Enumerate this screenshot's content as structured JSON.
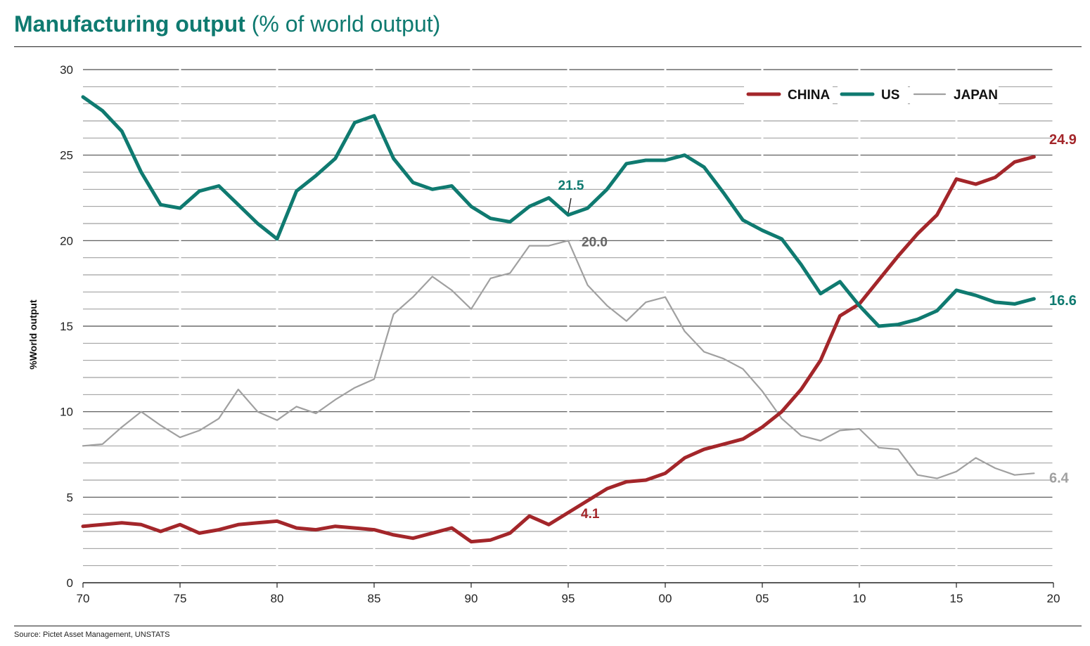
{
  "header": {
    "title_bold": "Manufacturing output",
    "title_rest": " (% of world output)"
  },
  "footer": {
    "source": "Source: Pictet Asset Management, UNSTATS"
  },
  "chart_data": {
    "type": "line",
    "title": "Manufacturing output (% of world output)",
    "xlabel": "",
    "ylabel": "%World output",
    "xlim": [
      1970,
      2020
    ],
    "ylim": [
      0,
      30
    ],
    "yticks": [
      0,
      5,
      10,
      15,
      20,
      25,
      30
    ],
    "xticks": [
      {
        "value": 1970,
        "label": "70"
      },
      {
        "value": 1975,
        "label": "75"
      },
      {
        "value": 1980,
        "label": "80"
      },
      {
        "value": 1985,
        "label": "85"
      },
      {
        "value": 1990,
        "label": "90"
      },
      {
        "value": 1995,
        "label": "95"
      },
      {
        "value": 2000,
        "label": "00"
      },
      {
        "value": 2005,
        "label": "05"
      },
      {
        "value": 2010,
        "label": "10"
      },
      {
        "value": 2015,
        "label": "15"
      },
      {
        "value": 2020,
        "label": "20"
      }
    ],
    "grid": true,
    "legend_position": "top-right",
    "x": [
      1970,
      1971,
      1972,
      1973,
      1974,
      1975,
      1976,
      1977,
      1978,
      1979,
      1980,
      1981,
      1982,
      1983,
      1984,
      1985,
      1986,
      1987,
      1988,
      1989,
      1990,
      1991,
      1992,
      1993,
      1994,
      1995,
      1996,
      1997,
      1998,
      1999,
      2000,
      2001,
      2002,
      2003,
      2004,
      2005,
      2006,
      2007,
      2008,
      2009,
      2010,
      2011,
      2012,
      2013,
      2014,
      2015,
      2016,
      2017,
      2018,
      2019
    ],
    "series": [
      {
        "name": "CHINA",
        "color": "#a3262a",
        "values": [
          3.3,
          3.4,
          3.5,
          3.4,
          3.0,
          3.4,
          2.9,
          3.1,
          3.4,
          3.5,
          3.6,
          3.2,
          3.1,
          3.3,
          3.2,
          3.1,
          2.8,
          2.6,
          2.9,
          3.2,
          2.4,
          2.5,
          2.9,
          3.9,
          3.4,
          4.1,
          4.8,
          5.5,
          5.9,
          6.0,
          6.4,
          7.3,
          7.8,
          8.1,
          8.4,
          9.1,
          10.0,
          11.3,
          13.0,
          15.6,
          16.3,
          17.7,
          19.1,
          20.4,
          21.5,
          23.6,
          23.3,
          23.7,
          24.6,
          24.9
        ],
        "end_label": "24.9"
      },
      {
        "name": "US",
        "color": "#0f7a70",
        "values": [
          28.4,
          27.6,
          26.4,
          24.0,
          22.1,
          21.9,
          22.9,
          23.2,
          22.1,
          21.0,
          20.1,
          22.9,
          23.8,
          24.8,
          26.9,
          27.3,
          24.8,
          23.4,
          23.0,
          23.2,
          22.0,
          21.3,
          21.1,
          22.0,
          22.5,
          21.5,
          21.9,
          23.0,
          24.5,
          24.7,
          24.7,
          25.0,
          24.3,
          22.8,
          21.2,
          20.6,
          20.1,
          18.6,
          16.9,
          17.6,
          16.2,
          15.0,
          15.1,
          15.4,
          15.9,
          17.1,
          16.8,
          16.4,
          16.3,
          16.6
        ],
        "end_label": "16.6"
      },
      {
        "name": "JAPAN",
        "color": "#a0a0a0",
        "values": [
          8.0,
          8.1,
          9.1,
          10.0,
          9.2,
          8.5,
          8.9,
          9.6,
          11.3,
          10.0,
          9.5,
          10.3,
          9.9,
          10.7,
          11.4,
          11.9,
          15.7,
          16.7,
          17.9,
          17.1,
          16.0,
          17.8,
          18.1,
          19.7,
          19.7,
          20.0,
          17.4,
          16.2,
          15.3,
          16.4,
          16.7,
          14.7,
          13.5,
          13.1,
          12.5,
          11.2,
          9.6,
          8.6,
          8.3,
          8.9,
          9.0,
          7.9,
          7.8,
          6.3,
          6.1,
          6.5,
          7.3,
          6.7,
          6.3,
          6.4
        ],
        "end_label": "6.4"
      }
    ],
    "annotations": [
      {
        "series": "US",
        "x": 1995,
        "y": 21.5,
        "text": "21.5"
      },
      {
        "series": "JAPAN",
        "x": 1995,
        "y": 20.0,
        "text": "20.0"
      },
      {
        "series": "CHINA",
        "x": 1995,
        "y": 4.1,
        "text": "4.1"
      }
    ]
  }
}
